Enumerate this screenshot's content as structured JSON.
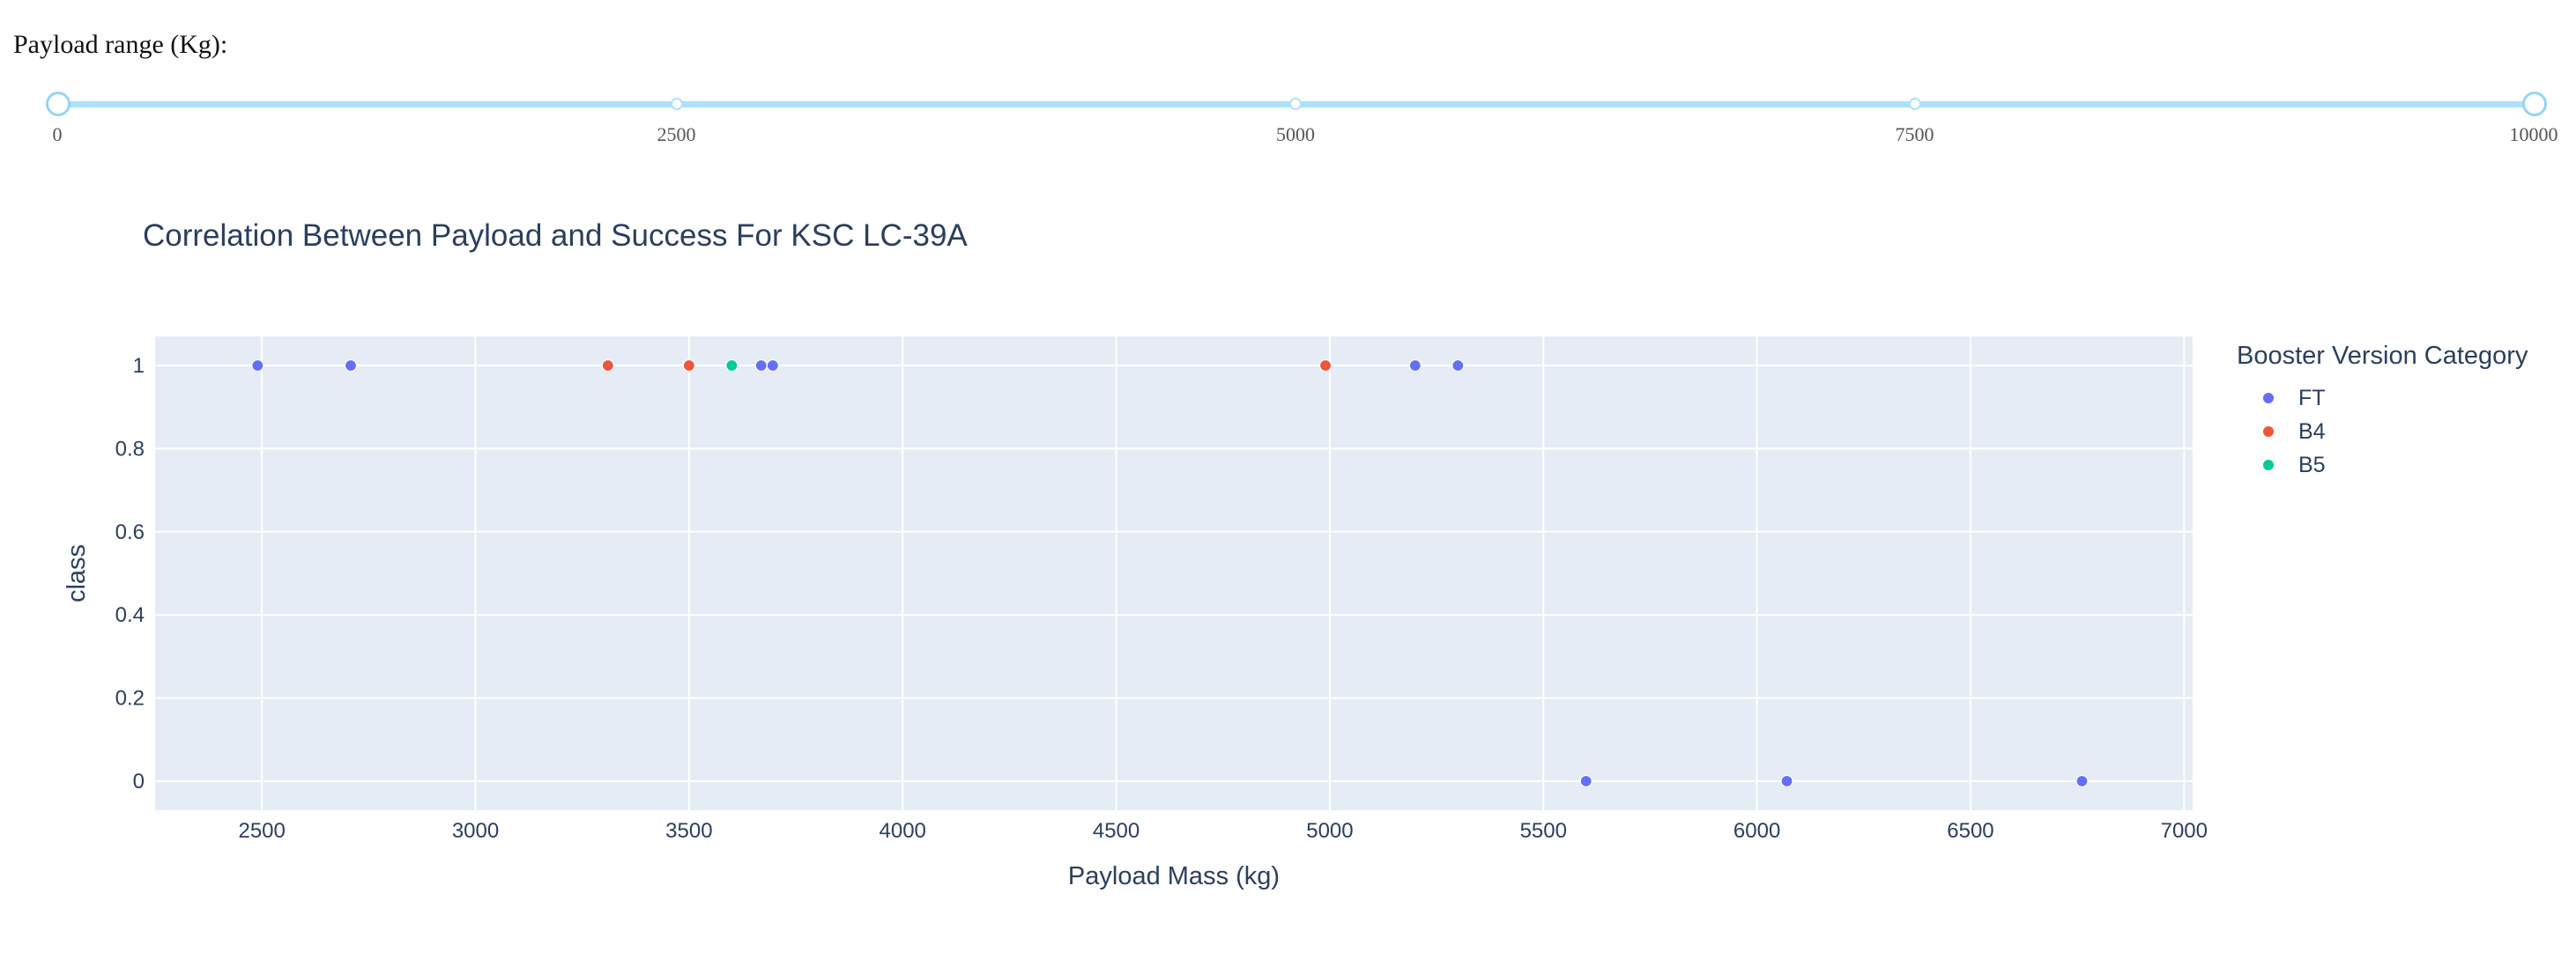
{
  "slider": {
    "label": "Payload range (Kg):",
    "min": 0,
    "max": 10000,
    "value": [
      0,
      10000
    ],
    "marks": [
      "0",
      "2500",
      "5000",
      "7500",
      "10000"
    ]
  },
  "chart_data": {
    "type": "scatter",
    "title": "Correlation Between Payload and Success For KSC LC-39A",
    "xlabel": "Payload Mass (kg)",
    "ylabel": "class",
    "xlim": [
      2250,
      7020
    ],
    "ylim": [
      -0.07,
      1.07
    ],
    "xticks": [
      2500,
      3000,
      3500,
      4000,
      4500,
      5000,
      5500,
      6000,
      6500,
      7000
    ],
    "yticks": [
      0,
      0.2,
      0.4,
      0.6,
      0.8,
      1
    ],
    "ytick_labels": [
      "0",
      "0.2",
      "0.4",
      "0.6",
      "0.8",
      "1"
    ],
    "grid": true,
    "legend_title": "Booster Version Category",
    "legend_position": "right",
    "series": [
      {
        "name": "FT",
        "color": "#636efa",
        "points": [
          {
            "x": 2490,
            "y": 1
          },
          {
            "x": 2708,
            "y": 1
          },
          {
            "x": 3669,
            "y": 1
          },
          {
            "x": 3696,
            "y": 1
          },
          {
            "x": 5200,
            "y": 1
          },
          {
            "x": 5300,
            "y": 1
          },
          {
            "x": 5600,
            "y": 0
          },
          {
            "x": 6070,
            "y": 0
          },
          {
            "x": 6761,
            "y": 0
          }
        ]
      },
      {
        "name": "B4",
        "color": "#ef553b",
        "points": [
          {
            "x": 3310,
            "y": 1
          },
          {
            "x": 3500,
            "y": 1
          },
          {
            "x": 4990,
            "y": 1
          }
        ]
      },
      {
        "name": "B5",
        "color": "#00cc96",
        "points": [
          {
            "x": 3600,
            "y": 1
          }
        ]
      }
    ]
  },
  "colors": {
    "plot_background": "#e5ecf6",
    "grid": "#ffffff",
    "text": "#2a3f5f",
    "slider_accent": "#abe2fb"
  }
}
